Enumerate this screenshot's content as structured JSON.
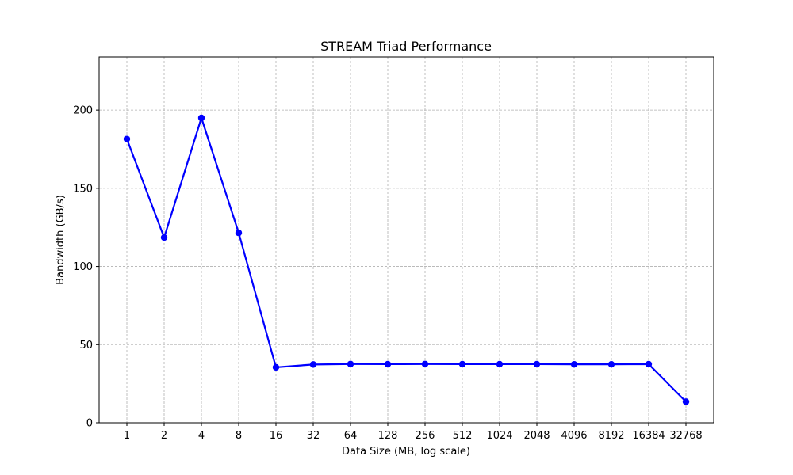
{
  "chart_data": {
    "type": "line",
    "title": "STREAM Triad Performance",
    "xlabel": "Data Size (MB, log scale)",
    "ylabel": "Bandwidth (GB/s)",
    "x_scale": "log2",
    "categories": [
      "1",
      "2",
      "4",
      "8",
      "16",
      "32",
      "64",
      "128",
      "256",
      "512",
      "1024",
      "2048",
      "4096",
      "8192",
      "16384",
      "32768"
    ],
    "series": [
      {
        "values": [
          181.5,
          118.5,
          195.0,
          121.5,
          35.5,
          37.3,
          37.6,
          37.5,
          37.6,
          37.5,
          37.5,
          37.5,
          37.4,
          37.4,
          37.5,
          13.5
        ],
        "color": "#0000ff",
        "marker": "circle"
      }
    ],
    "ylim": [
      0,
      234
    ],
    "yticks": [
      0,
      50,
      100,
      150,
      200
    ],
    "grid": true
  }
}
